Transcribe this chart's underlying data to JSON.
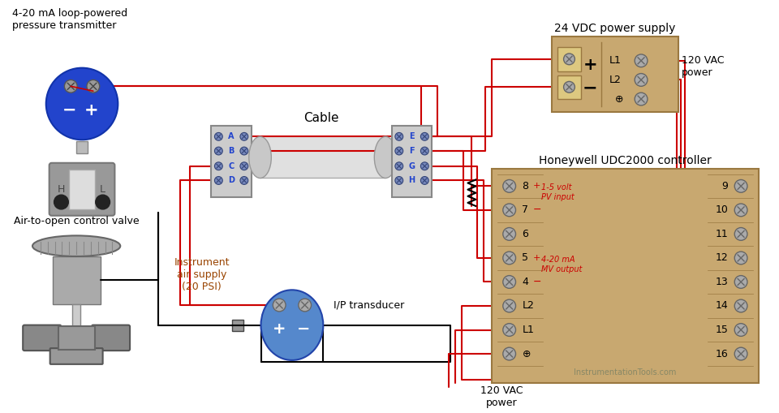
{
  "bg_color": "#ffffff",
  "wire_color": "#cc0000",
  "black_color": "#000000",
  "gray_color": "#888888",
  "blue_color": "#2244bb",
  "tan_color": "#c8a870",
  "dark_tan": "#9a7840",
  "transmitter_label": "4-20 mA loop-powered\npressure transmitter",
  "valve_label": "Air-to-open control valve",
  "air_label": "Instrument\nair supply\n(20 PSI)",
  "ip_label": "I/P transducer",
  "cable_label": "Cable",
  "psu_label": "24 VDC power supply",
  "controller_label": "Honeywell UDC2000 controller",
  "vac_label_right": "120 VAC\npower",
  "vac_label_bottom": "120 VAC\npower",
  "pv_label": "1-5 volt\nPV input",
  "mv_label": "4-20 mA\nMV output",
  "watermark": "InstrumentationTools.com"
}
